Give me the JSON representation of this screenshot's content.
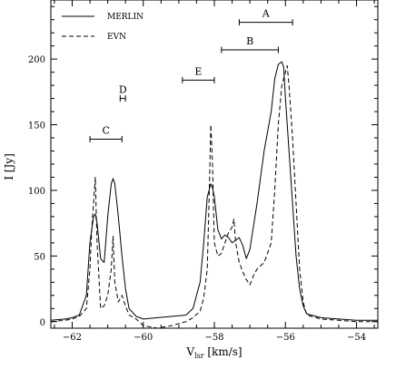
{
  "chart_data": {
    "type": "line",
    "xlabel_main": "V",
    "xlabel_sub": "lsr",
    "xlabel_rest": " [km/s]",
    "ylabel": "I [Jy]",
    "xlim": [
      -62.6,
      -53.4
    ],
    "ylim": [
      -5,
      245
    ],
    "x_ticks": [
      -62,
      -60,
      -58,
      -56,
      -54
    ],
    "x_tick_labels": [
      "−62",
      "−60",
      "−58",
      "−56",
      "−54"
    ],
    "y_ticks": [
      0,
      50,
      100,
      150,
      200
    ],
    "y_tick_labels": [
      "0",
      "50",
      "100",
      "150",
      "200"
    ],
    "legend_position": "top-left",
    "series": [
      {
        "name": "MERLIN",
        "style": "solid",
        "color": "#000000",
        "x": [
          -62.6,
          -62.2,
          -62.0,
          -61.8,
          -61.6,
          -61.5,
          -61.4,
          -61.35,
          -61.3,
          -61.2,
          -61.1,
          -61.0,
          -60.9,
          -60.85,
          -60.8,
          -60.7,
          -60.6,
          -60.5,
          -60.4,
          -60.2,
          -60.0,
          -59.6,
          -59.2,
          -58.8,
          -58.6,
          -58.4,
          -58.3,
          -58.2,
          -58.1,
          -58.05,
          -58.0,
          -57.9,
          -57.8,
          -57.7,
          -57.6,
          -57.5,
          -57.4,
          -57.3,
          -57.2,
          -57.1,
          -57.0,
          -56.8,
          -56.6,
          -56.4,
          -56.3,
          -56.2,
          -56.1,
          -56.05,
          -56.0,
          -55.9,
          -55.8,
          -55.7,
          -55.6,
          -55.5,
          -55.4,
          -55.0,
          -54.5,
          -54.0,
          -53.4
        ],
        "y": [
          1,
          2,
          3,
          5,
          20,
          60,
          80,
          82,
          75,
          48,
          45,
          80,
          105,
          109,
          105,
          80,
          50,
          25,
          10,
          4,
          2,
          3,
          4,
          5,
          10,
          30,
          60,
          95,
          105,
          102,
          95,
          70,
          63,
          66,
          64,
          60,
          62,
          64,
          58,
          48,
          55,
          90,
          130,
          160,
          185,
          196,
          198,
          194,
          170,
          130,
          90,
          50,
          25,
          12,
          6,
          3,
          2,
          1,
          1
        ]
      },
      {
        "name": "EVN",
        "style": "dashed",
        "color": "#000000",
        "x": [
          -62.6,
          -62.2,
          -62.0,
          -61.8,
          -61.6,
          -61.5,
          -61.45,
          -61.4,
          -61.35,
          -61.3,
          -61.2,
          -61.1,
          -61.0,
          -60.9,
          -60.85,
          -60.8,
          -60.7,
          -60.6,
          -60.5,
          -60.4,
          -60.2,
          -60.0,
          -59.6,
          -59.2,
          -58.8,
          -58.6,
          -58.4,
          -58.3,
          -58.2,
          -58.15,
          -58.1,
          -58.05,
          -58.0,
          -57.9,
          -57.8,
          -57.7,
          -57.6,
          -57.5,
          -57.45,
          -57.4,
          -57.3,
          -57.2,
          -57.1,
          -57.0,
          -56.9,
          -56.8,
          -56.6,
          -56.4,
          -56.3,
          -56.2,
          -56.1,
          -56.0,
          -55.95,
          -55.9,
          -55.8,
          -55.7,
          -55.6,
          -55.5,
          -55.4,
          -55.0,
          -54.5,
          -54.0,
          -53.4
        ],
        "y": [
          0,
          1,
          2,
          4,
          10,
          40,
          70,
          90,
          110,
          60,
          10,
          12,
          20,
          40,
          65,
          30,
          15,
          20,
          12,
          5,
          2,
          -3,
          -5,
          -3,
          0,
          3,
          8,
          18,
          40,
          90,
          150,
          120,
          60,
          50,
          52,
          60,
          68,
          72,
          78,
          60,
          45,
          38,
          32,
          28,
          35,
          40,
          45,
          60,
          100,
          150,
          180,
          190,
          195,
          180,
          140,
          90,
          40,
          15,
          5,
          2,
          1,
          0,
          0
        ]
      }
    ],
    "ranges": [
      {
        "label": "A",
        "x1": -57.3,
        "x2": -55.8,
        "y": 228
      },
      {
        "label": "B",
        "x1": -57.8,
        "x2": -56.2,
        "y": 207
      },
      {
        "label": "E",
        "x1": -58.9,
        "x2": -58.0,
        "y": 184
      },
      {
        "label": "D",
        "x1": -60.65,
        "x2": -60.5,
        "y": 170
      },
      {
        "label": "C",
        "x1": -61.5,
        "x2": -60.6,
        "y": 139
      }
    ]
  }
}
